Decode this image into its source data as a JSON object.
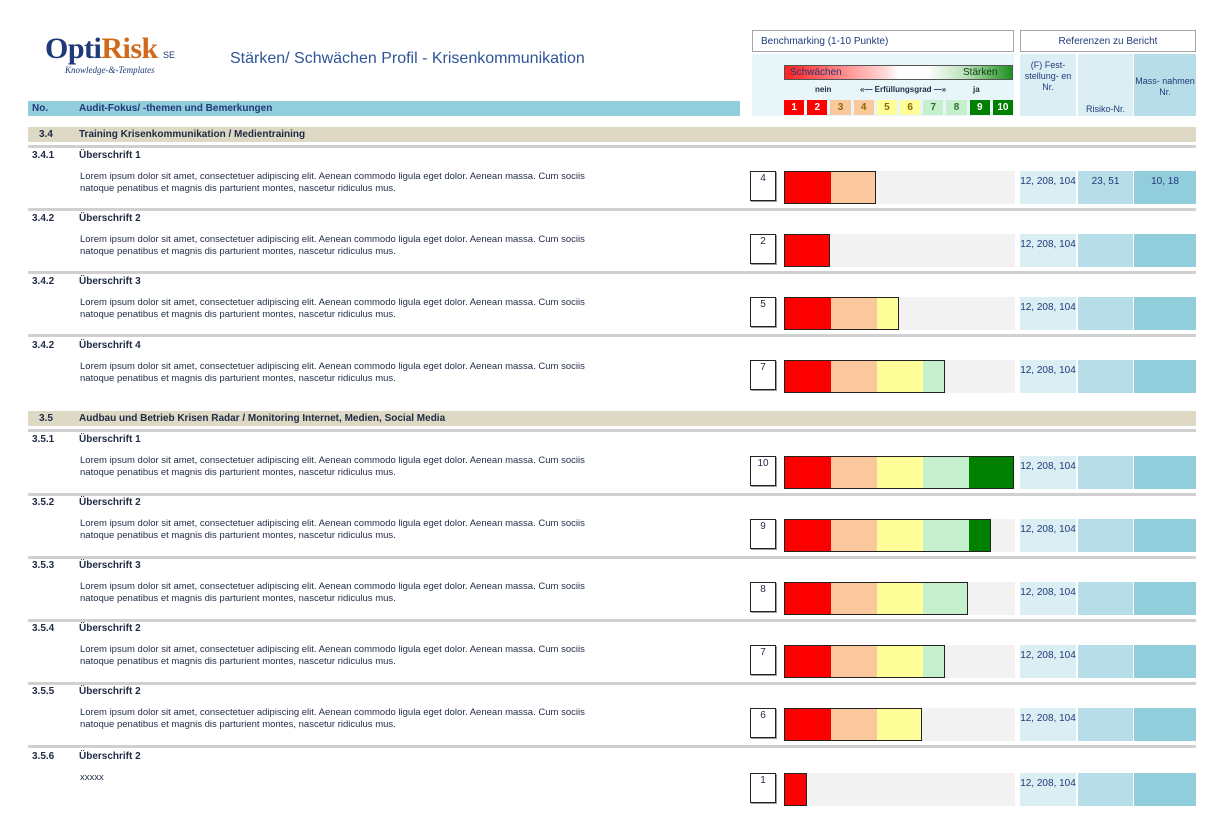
{
  "logo": {
    "main_a": "Opti",
    "main_b": "Risk",
    "sup": "SE",
    "sub": "Knowledge-&-Templates"
  },
  "title": "Stärken/ Schwächen Profil - Krisenkommunikation",
  "benchmark": {
    "header": "Benchmarking (1-10 Punkte)",
    "weak": "Schwächen",
    "strong": "Stärken",
    "scale_no": "nein",
    "scale_mid": "«— Erfüllungsgrad —»",
    "scale_yes": "ja",
    "scale": [
      "1",
      "2",
      "3",
      "4",
      "5",
      "6",
      "7",
      "8",
      "9",
      "10"
    ],
    "scale_colors": [
      "#ff0000",
      "#ff0000",
      "#fbc79c",
      "#fbc79c",
      "#ffff99",
      "#ffff99",
      "#c6efce",
      "#c6efce",
      "#008000",
      "#008000"
    ]
  },
  "references": {
    "header": "Referenzen zu Bericht",
    "col1": "(F) Fest- stellung- en Nr.",
    "col2": "Risiko-Nr.",
    "col3": "Mass- nahmen Nr."
  },
  "table_header": {
    "no": "No.",
    "focus": "Audit-Fokus/ -themen und Bemerkungen"
  },
  "bar_colors": [
    "#ff0000",
    "#fbc79c",
    "#ffff99",
    "#c6efce",
    "#008000"
  ],
  "sections": [
    {
      "num": "3.4",
      "title": "Training Krisenkommunikation / Medientraining"
    },
    {
      "num": "3.5",
      "title": "Audbau und Betrieb Krisen Radar / Monitoring Internet, Medien, Social Media"
    }
  ],
  "rows": [
    {
      "num": "3.4.1",
      "heading": "Überschrift 1",
      "line1": "Lorem ipsum dolor sit amet, consectetuer adipiscing elit. Aenean commodo ligula eget dolor. Aenean massa. Cum sociis",
      "line2": "natoque penatibus et magnis dis parturient montes, nascetur ridiculus mus.",
      "score": 4,
      "score_label": "4",
      "f_nr": "12, 208, 104",
      "risk_nr": "23, 51",
      "mass_nr": "10, 18"
    },
    {
      "num": "3.4.2",
      "heading": "Überschrift 2",
      "line1": "Lorem ipsum dolor sit amet, consectetuer adipiscing elit. Aenean commodo ligula eget dolor. Aenean massa. Cum sociis",
      "line2": "natoque penatibus et magnis dis parturient montes, nascetur ridiculus mus.",
      "score": 2,
      "score_label": "2",
      "f_nr": "12, 208, 104",
      "risk_nr": "",
      "mass_nr": ""
    },
    {
      "num": "3.4.2",
      "heading": "Überschrift 3",
      "line1": "Lorem ipsum dolor sit amet, consectetuer adipiscing elit. Aenean commodo ligula eget dolor. Aenean massa. Cum sociis",
      "line2": "natoque penatibus et magnis dis parturient montes, nascetur ridiculus mus.",
      "score": 5,
      "score_label": "5",
      "f_nr": "12, 208, 104",
      "risk_nr": "",
      "mass_nr": ""
    },
    {
      "num": "3.4.2",
      "heading": "Überschrift 4",
      "line1": "Lorem ipsum dolor sit amet, consectetuer adipiscing elit. Aenean commodo ligula eget dolor. Aenean massa. Cum sociis",
      "line2": "natoque penatibus et magnis dis parturient montes, nascetur ridiculus mus.",
      "score": 7,
      "score_label": "7",
      "f_nr": "12, 208, 104",
      "risk_nr": "",
      "mass_nr": ""
    },
    {
      "num": "3.5.1",
      "heading": "Überschrift 1",
      "line1": "Lorem ipsum dolor sit amet, consectetuer adipiscing elit. Aenean commodo ligula eget dolor. Aenean massa. Cum sociis",
      "line2": "natoque penatibus et magnis dis parturient montes, nascetur ridiculus mus.",
      "score": 10,
      "score_label": "10",
      "f_nr": "12, 208, 104",
      "risk_nr": "",
      "mass_nr": ""
    },
    {
      "num": "3.5.2",
      "heading": "Überschrift 2",
      "line1": "Lorem ipsum dolor sit amet, consectetuer adipiscing elit. Aenean commodo ligula eget dolor. Aenean massa. Cum sociis",
      "line2": "natoque penatibus et magnis dis parturient montes, nascetur ridiculus mus.",
      "score": 9,
      "score_label": "9",
      "f_nr": "12, 208, 104",
      "risk_nr": "",
      "mass_nr": ""
    },
    {
      "num": "3.5.3",
      "heading": "Überschrift 3",
      "line1": "Lorem ipsum dolor sit amet, consectetuer adipiscing elit. Aenean commodo ligula eget dolor. Aenean massa. Cum sociis",
      "line2": "natoque penatibus et magnis dis parturient montes, nascetur ridiculus mus.",
      "score": 8,
      "score_label": "8",
      "f_nr": "12, 208, 104",
      "risk_nr": "",
      "mass_nr": ""
    },
    {
      "num": "3.5.4",
      "heading": "Überschrift 2",
      "line1": "Lorem ipsum dolor sit amet, consectetuer adipiscing elit. Aenean commodo ligula eget dolor. Aenean massa. Cum sociis",
      "line2": "natoque penatibus et magnis dis parturient montes, nascetur ridiculus mus.",
      "score": 7,
      "score_label": "7",
      "f_nr": "12, 208, 104",
      "risk_nr": "",
      "mass_nr": ""
    },
    {
      "num": "3.5.5",
      "heading": "Überschrift 2",
      "line1": "Lorem ipsum dolor sit amet, consectetuer adipiscing elit. Aenean commodo ligula eget dolor. Aenean massa. Cum sociis",
      "line2": "natoque penatibus et magnis dis parturient montes, nascetur ridiculus mus.",
      "score": 6,
      "score_label": "6",
      "f_nr": "12, 208, 104",
      "risk_nr": "",
      "mass_nr": ""
    },
    {
      "num": "3.5.6",
      "heading": "Überschrift 2",
      "line1": "xxxxx",
      "line2": "",
      "score": 1,
      "score_label": "1",
      "f_nr": "12, 208, 104",
      "risk_nr": "",
      "mass_nr": ""
    }
  ]
}
